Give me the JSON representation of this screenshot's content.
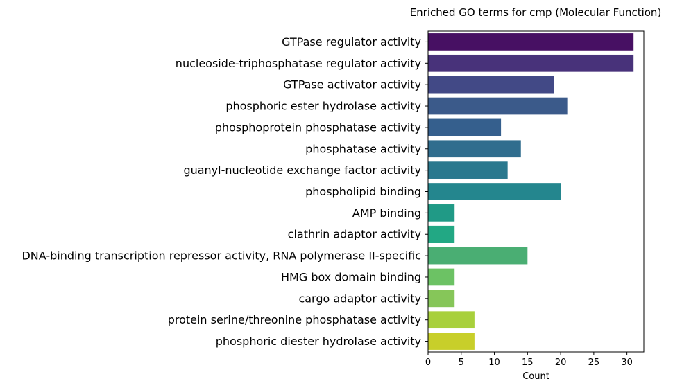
{
  "chart_data": {
    "type": "bar",
    "orientation": "horizontal",
    "title": "Enriched GO terms for cmp (Molecular Function)",
    "xlabel": "Count",
    "ylabel": "",
    "xlim": [
      0,
      32.55
    ],
    "xticks": [
      0,
      5,
      10,
      15,
      20,
      25,
      30
    ],
    "grid": false,
    "categories": [
      "GTPase regulator activity",
      "nucleoside-triphosphatase regulator activity",
      "GTPase activator activity",
      "phosphoric ester hydrolase activity",
      "phosphoprotein phosphatase activity",
      "phosphatase activity",
      "guanyl-nucleotide exchange factor activity",
      "phospholipid binding",
      "AMP binding",
      "clathrin adaptor activity",
      "DNA-binding transcription repressor activity, RNA polymerase II-specific",
      "HMG box domain binding",
      "cargo adaptor activity",
      "protein serine/threonine phosphatase activity",
      "phosphoric diester hydrolase activity"
    ],
    "values": [
      31,
      31,
      19,
      21,
      11,
      14,
      12,
      20,
      4,
      4,
      15,
      4,
      4,
      7,
      7
    ],
    "colors": [
      "#471063",
      "#48327a",
      "#424986",
      "#3b5a8a",
      "#355f8d",
      "#306d8e",
      "#2a788e",
      "#24868e",
      "#209a86",
      "#22a884",
      "#4aae73",
      "#6cc264",
      "#86c659",
      "#a8d03c",
      "#c8cf2a"
    ]
  }
}
